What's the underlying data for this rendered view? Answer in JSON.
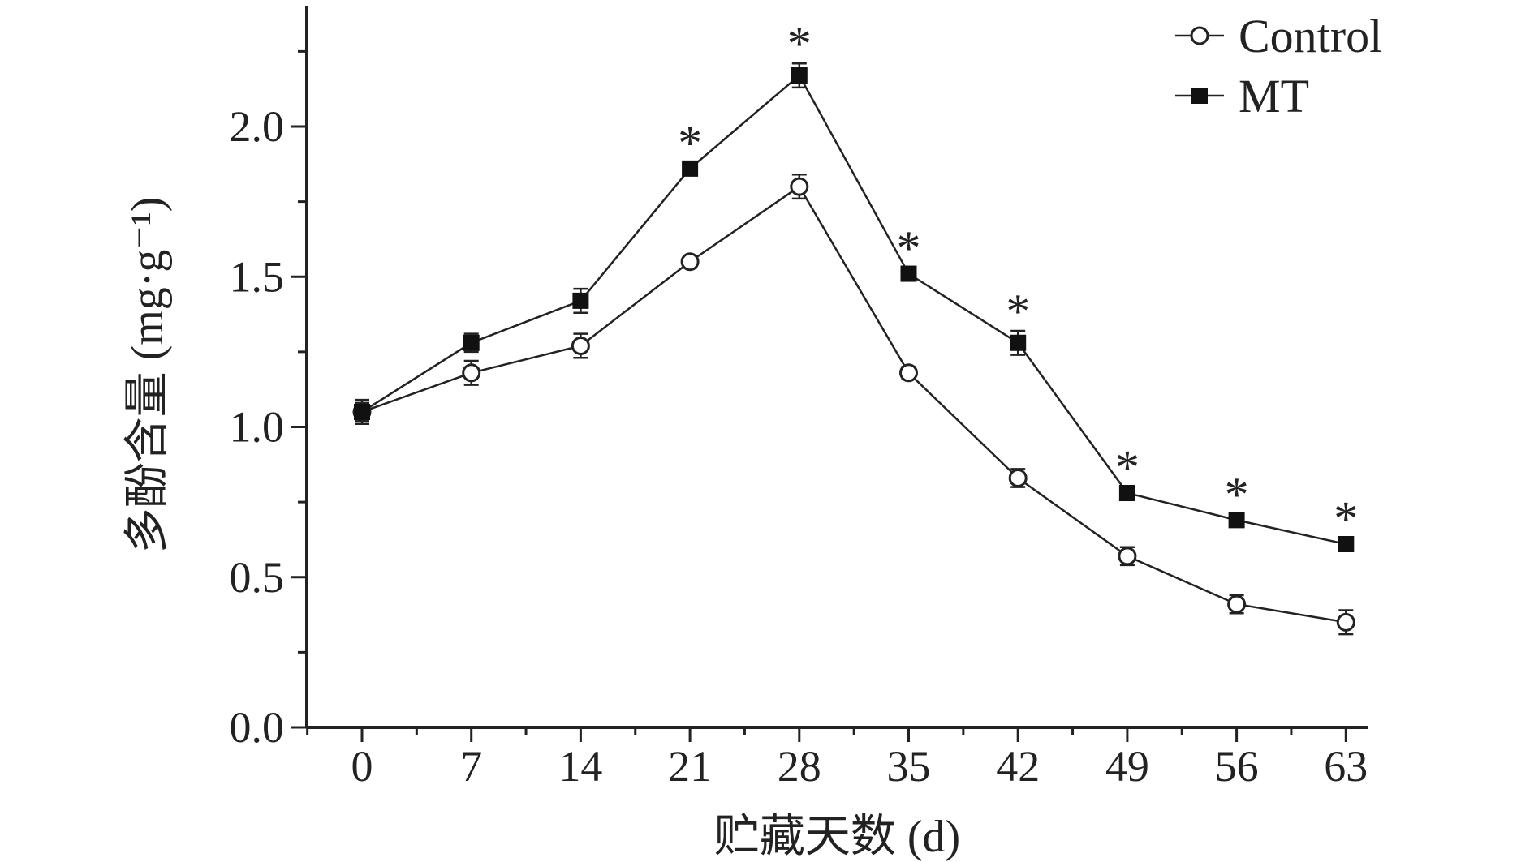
{
  "chart_data": {
    "type": "line",
    "xlabel": "贮藏天数 (d)",
    "ylabel": "多酚含量 (mg·g⁻¹)",
    "x": [
      0,
      7,
      14,
      21,
      28,
      35,
      42,
      49,
      56,
      63
    ],
    "x_ticks": [
      "0",
      "7",
      "14",
      "21",
      "28",
      "35",
      "42",
      "49",
      "56",
      "63"
    ],
    "ylim": [
      0,
      2.3
    ],
    "y_ticks": [
      "0.0",
      "0.5",
      "1.0",
      "1.5",
      "2.0"
    ],
    "y_tick_values": [
      0,
      0.5,
      1.0,
      1.5,
      2.0
    ],
    "grid": false,
    "legend_position": "top-right",
    "series": [
      {
        "name": "Control",
        "marker": "open-circle",
        "values": [
          1.05,
          1.18,
          1.27,
          1.55,
          1.8,
          1.18,
          0.83,
          0.57,
          0.41,
          0.35
        ],
        "errors": [
          0.04,
          0.04,
          0.04,
          0.02,
          0.04,
          0.02,
          0.03,
          0.03,
          0.03,
          0.04
        ]
      },
      {
        "name": "MT",
        "marker": "filled-square",
        "values": [
          1.05,
          1.28,
          1.42,
          1.86,
          2.17,
          1.51,
          1.28,
          0.78,
          0.69,
          0.61
        ],
        "errors": [
          0.03,
          0.03,
          0.04,
          0.02,
          0.04,
          0.02,
          0.04,
          0.02,
          0.02,
          0.02
        ]
      }
    ],
    "significance_marker": "*",
    "significant_x": [
      21,
      28,
      35,
      42,
      49,
      56,
      63
    ]
  }
}
